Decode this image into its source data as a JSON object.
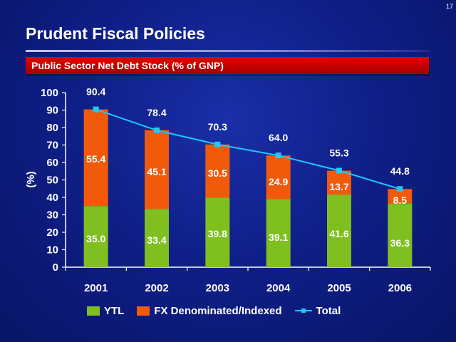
{
  "page_number": "17",
  "slide_title": "Prudent Fiscal Policies",
  "subtitle": "Public Sector Net Debt Stock (% of GNP)",
  "colors": {
    "ytl": "#7fbf1f",
    "fx": "#f05a0a",
    "total": "#1ec8ff",
    "subtitle_bar": "#c80000"
  },
  "chart_data": {
    "type": "bar",
    "stacked": true,
    "categories": [
      "2001",
      "2002",
      "2003",
      "2004",
      "2005",
      "2006"
    ],
    "series": [
      {
        "name": "YTL",
        "type": "bar",
        "values": [
          35.0,
          33.4,
          39.8,
          39.1,
          41.6,
          36.3
        ]
      },
      {
        "name": "FX Denominated/Indexed",
        "type": "bar",
        "values": [
          55.4,
          45.1,
          30.5,
          24.9,
          13.7,
          8.5
        ]
      },
      {
        "name": "Total",
        "type": "line",
        "values": [
          90.4,
          78.4,
          70.3,
          64.0,
          55.3,
          44.8
        ]
      }
    ],
    "ylabel": "(%)",
    "ylim": [
      0,
      100
    ],
    "yticks": [
      0,
      10,
      20,
      30,
      40,
      50,
      60,
      70,
      80,
      90,
      100
    ],
    "grid": false,
    "legend_position": "bottom"
  }
}
